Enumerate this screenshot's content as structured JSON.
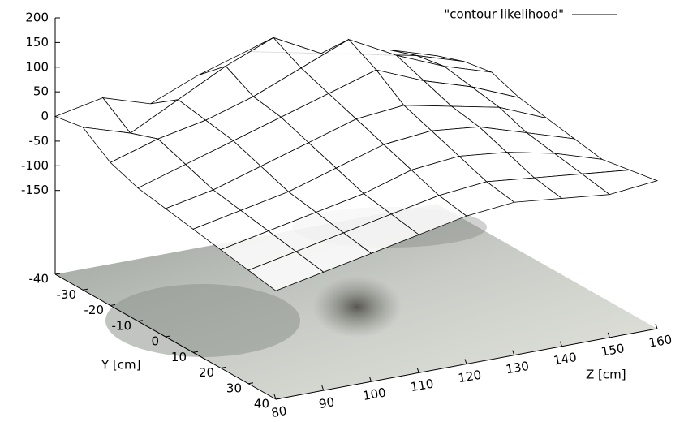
{
  "chart_data": {
    "type": "surface",
    "series": [
      {
        "name": "\"contour likelihood\"",
        "color": "#000000"
      }
    ],
    "legend": "top-right",
    "xlabel": "Z  [cm]",
    "ylabel": "Y  [cm]",
    "x": [
      80,
      90,
      100,
      110,
      120,
      130,
      140,
      150,
      160
    ],
    "y": [
      -40,
      -30,
      -20,
      -10,
      0,
      10,
      20,
      30,
      40
    ],
    "z": [
      [
        0,
        20,
        -10,
        30,
        60,
        40,
        20,
        10,
        -20
      ],
      [
        10,
        -20,
        30,
        80,
        120,
        70,
        50,
        30,
        0
      ],
      [
        -30,
        0,
        20,
        50,
        90,
        130,
        80,
        40,
        10
      ],
      [
        -50,
        -20,
        10,
        40,
        70,
        100,
        60,
        30,
        -10
      ],
      [
        -60,
        -40,
        -10,
        20,
        50,
        60,
        40,
        20,
        -20
      ],
      [
        -70,
        -50,
        -30,
        0,
        30,
        40,
        30,
        0,
        -30
      ],
      [
        -80,
        -60,
        -40,
        -20,
        10,
        20,
        10,
        -10,
        -40
      ],
      [
        -90,
        -70,
        -50,
        -30,
        -10,
        0,
        -10,
        -20,
        -30
      ],
      [
        -100,
        -80,
        -60,
        -40,
        -20,
        -10,
        -20,
        -30,
        -20
      ]
    ],
    "xlim": [
      80,
      160
    ],
    "ylim": [
      -40,
      40
    ],
    "zlim": [
      -320,
      200
    ],
    "xticks": [
      80,
      90,
      100,
      110,
      120,
      130,
      140,
      150,
      160
    ],
    "yticks": [
      -40,
      -30,
      -20,
      -10,
      0,
      10,
      20,
      30,
      40
    ],
    "zticks": [
      -150,
      -100,
      -50,
      0,
      50,
      100,
      150,
      200
    ]
  }
}
